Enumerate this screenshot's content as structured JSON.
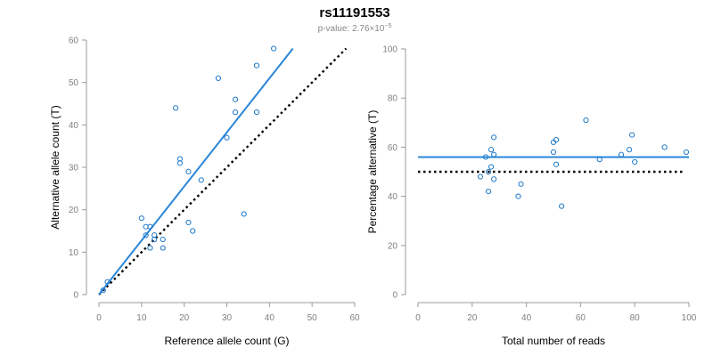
{
  "figure": {
    "title": "rs11191553",
    "pvalue_prefix": "p-value: 2.76×10",
    "pvalue_exponent": "−5"
  },
  "colors": {
    "points": "#1f78c8",
    "fit_line": "#2a86d8",
    "reference_line": "#000000",
    "axis": "#9a9a9a",
    "tick_label": "#808080"
  },
  "chart_data": [
    {
      "type": "scatter",
      "title": "",
      "xlabel": "Reference allele count (G)",
      "ylabel": "Alternative allele count (T)",
      "xlim": [
        0,
        60
      ],
      "ylim": [
        0,
        60
      ],
      "xticks": [
        0,
        10,
        20,
        30,
        40,
        50,
        60
      ],
      "yticks": [
        0,
        10,
        20,
        30,
        40,
        50,
        60
      ],
      "grid": false,
      "points": [
        {
          "x": 1,
          "y": 1
        },
        {
          "x": 2,
          "y": 3
        },
        {
          "x": 10,
          "y": 18
        },
        {
          "x": 11,
          "y": 16
        },
        {
          "x": 11,
          "y": 14
        },
        {
          "x": 12,
          "y": 11
        },
        {
          "x": 12,
          "y": 16
        },
        {
          "x": 13,
          "y": 14
        },
        {
          "x": 13,
          "y": 13
        },
        {
          "x": 15,
          "y": 13
        },
        {
          "x": 15,
          "y": 11
        },
        {
          "x": 18,
          "y": 44
        },
        {
          "x": 19,
          "y": 32
        },
        {
          "x": 19,
          "y": 31
        },
        {
          "x": 21,
          "y": 29
        },
        {
          "x": 21,
          "y": 17
        },
        {
          "x": 22,
          "y": 15
        },
        {
          "x": 24,
          "y": 27
        },
        {
          "x": 28,
          "y": 51
        },
        {
          "x": 30,
          "y": 37
        },
        {
          "x": 32,
          "y": 46
        },
        {
          "x": 32,
          "y": 43
        },
        {
          "x": 34,
          "y": 19
        },
        {
          "x": 37,
          "y": 54
        },
        {
          "x": 37,
          "y": 43
        },
        {
          "x": 41,
          "y": 58
        }
      ],
      "fit_line": {
        "x": [
          0,
          45.5
        ],
        "y": [
          0,
          58
        ]
      },
      "reference_line": {
        "x": [
          0,
          58
        ],
        "y": [
          0,
          58
        ],
        "style": "dotted"
      }
    },
    {
      "type": "scatter",
      "title": "",
      "xlabel": "Total number of reads",
      "ylabel": "Percentage alternative (T)",
      "xlim": [
        0,
        100
      ],
      "ylim": [
        0,
        100
      ],
      "xticks": [
        0,
        20,
        40,
        60,
        80,
        100
      ],
      "yticks": [
        0,
        20,
        40,
        60,
        80,
        100
      ],
      "grid": false,
      "points": [
        {
          "x": 23,
          "y": 48
        },
        {
          "x": 25,
          "y": 56
        },
        {
          "x": 26,
          "y": 42
        },
        {
          "x": 26,
          "y": 50
        },
        {
          "x": 27,
          "y": 52
        },
        {
          "x": 27,
          "y": 59
        },
        {
          "x": 28,
          "y": 64
        },
        {
          "x": 28,
          "y": 57
        },
        {
          "x": 28,
          "y": 47
        },
        {
          "x": 37,
          "y": 40
        },
        {
          "x": 38,
          "y": 45
        },
        {
          "x": 50,
          "y": 62
        },
        {
          "x": 50,
          "y": 58
        },
        {
          "x": 51,
          "y": 63
        },
        {
          "x": 51,
          "y": 53
        },
        {
          "x": 53,
          "y": 36
        },
        {
          "x": 62,
          "y": 71
        },
        {
          "x": 67,
          "y": 55
        },
        {
          "x": 75,
          "y": 57
        },
        {
          "x": 78,
          "y": 59
        },
        {
          "x": 79,
          "y": 65
        },
        {
          "x": 80,
          "y": 54
        },
        {
          "x": 91,
          "y": 60
        },
        {
          "x": 99,
          "y": 58
        }
      ],
      "fit_line": {
        "x": [
          0,
          100
        ],
        "y": [
          56,
          56
        ]
      },
      "reference_line": {
        "x": [
          0,
          98
        ],
        "y": [
          50,
          50
        ],
        "style": "dotted"
      }
    }
  ]
}
